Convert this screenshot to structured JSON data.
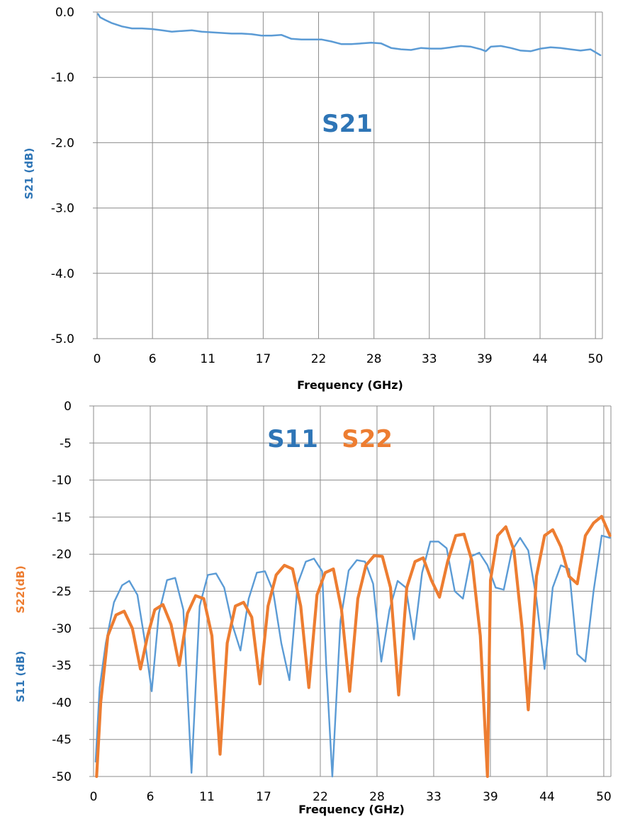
{
  "colors": {
    "s21": "#5b9bd5",
    "s21_label": "#2e75b6",
    "s11": "#5b9bd5",
    "s11_label": "#2e75b6",
    "s22": "#ed7d31"
  },
  "chart_data": [
    {
      "type": "line",
      "title": "",
      "annotation": "S21",
      "xlabel": "Frequency  (GHz)",
      "ylabel": "S21 (dB)",
      "xlim": [
        0,
        50.7
      ],
      "ylim": [
        -5.0,
        0.0
      ],
      "x_tick_labels": [
        "0",
        "6",
        "11",
        "17",
        "22",
        "28",
        "33",
        "39",
        "44",
        "50"
      ],
      "y_tick_labels": [
        "0.0",
        "-1.0",
        "-2.0",
        "-3.0",
        "-4.0",
        "-5.0"
      ],
      "grid": true,
      "series": [
        {
          "name": "S21",
          "x": [
            0.1,
            0.3,
            0.8,
            1.5,
            2.5,
            3.5,
            4.5,
            5.5,
            6.5,
            7.5,
            8.5,
            9.5,
            10.5,
            11.5,
            12.5,
            13.5,
            14.5,
            15.5,
            16.5,
            17.5,
            18.5,
            19.5,
            20.5,
            21.5,
            22.5,
            23.5,
            24.5,
            25.5,
            26.5,
            27.5,
            28.5,
            29.5,
            30.5,
            31.5,
            32.5,
            33.5,
            34.5,
            35.5,
            36.5,
            37.5,
            38.5,
            39.0,
            39.5,
            40.5,
            41.5,
            42.5,
            43.5,
            44.5,
            45.5,
            46.5,
            47.5,
            48.5,
            49.5,
            50.5
          ],
          "y": [
            -0.03,
            -0.08,
            -0.12,
            -0.17,
            -0.22,
            -0.25,
            -0.25,
            -0.26,
            -0.28,
            -0.3,
            -0.29,
            -0.28,
            -0.3,
            -0.31,
            -0.32,
            -0.33,
            -0.33,
            -0.34,
            -0.36,
            -0.36,
            -0.35,
            -0.41,
            -0.42,
            -0.42,
            -0.42,
            -0.45,
            -0.49,
            -0.49,
            -0.48,
            -0.47,
            -0.48,
            -0.55,
            -0.57,
            -0.58,
            -0.55,
            -0.56,
            -0.56,
            -0.54,
            -0.52,
            -0.53,
            -0.57,
            -0.6,
            -0.53,
            -0.52,
            -0.55,
            -0.59,
            -0.6,
            -0.56,
            -0.54,
            -0.55,
            -0.57,
            -0.59,
            -0.57,
            -0.66
          ]
        }
      ]
    },
    {
      "type": "line",
      "title": "",
      "annotations": [
        "S11",
        "S22"
      ],
      "xlabel": "Frequency  (GHz)",
      "ylabel": [
        "S22(dB)",
        "S11 (dB)"
      ],
      "xlim": [
        0,
        50.7
      ],
      "ylim": [
        -50,
        0
      ],
      "x_tick_labels": [
        "0",
        "6",
        "11",
        "17",
        "22",
        "28",
        "33",
        "39",
        "44",
        "50"
      ],
      "y_tick_labels": [
        "0",
        "-5",
        "-10",
        "-15",
        "-20",
        "-25",
        "-30",
        "-35",
        "-40",
        "-45",
        "-50"
      ],
      "grid": true,
      "series": [
        {
          "name": "S11",
          "x": [
            0.2,
            0.6,
            1.2,
            2.0,
            2.8,
            3.5,
            4.3,
            5.0,
            5.7,
            6.4,
            7.2,
            8.0,
            8.8,
            9.6,
            10.4,
            11.2,
            12.0,
            12.8,
            13.6,
            14.4,
            15.2,
            16.0,
            16.8,
            17.6,
            18.4,
            19.2,
            20.0,
            20.8,
            21.6,
            22.4,
            22.8,
            23.4,
            24.2,
            25.0,
            25.8,
            26.6,
            27.4,
            28.2,
            29.0,
            29.8,
            30.6,
            31.4,
            32.2,
            33.0,
            33.8,
            34.6,
            35.4,
            36.2,
            37.0,
            37.8,
            38.6,
            39.4,
            40.2,
            41.0,
            41.8,
            42.6,
            43.4,
            44.2,
            45.0,
            45.8,
            46.6,
            47.4,
            48.2,
            49.0,
            49.8,
            50.6
          ],
          "y": [
            -48,
            -38,
            -32,
            -26.5,
            -24.2,
            -23.6,
            -25.5,
            -31.5,
            -38.5,
            -28,
            -23.5,
            -23.2,
            -27.5,
            -49.5,
            -27,
            -22.8,
            -22.6,
            -24.5,
            -29.5,
            -33,
            -26,
            -22.5,
            -22.3,
            -25,
            -32,
            -37,
            -24,
            -21,
            -20.6,
            -22.3,
            -35,
            -50,
            -29,
            -22.2,
            -20.8,
            -21,
            -24,
            -34.5,
            -27.5,
            -23.6,
            -24.5,
            -31.5,
            -22.5,
            -18.3,
            -18.3,
            -19.2,
            -25,
            -26,
            -20.3,
            -19.8,
            -21.5,
            -24.5,
            -24.8,
            -19.5,
            -17.8,
            -19.5,
            -26,
            -35.5,
            -24.5,
            -21.5,
            -22,
            -33.5,
            -34.5,
            -25,
            -17.5,
            -17.8
          ]
        },
        {
          "name": "S22",
          "x": [
            0.3,
            0.7,
            1.4,
            2.2,
            3.0,
            3.8,
            4.6,
            5.3,
            6.0,
            6.8,
            7.6,
            8.4,
            9.2,
            10.0,
            10.8,
            11.6,
            12.4,
            13.1,
            13.9,
            14.7,
            15.5,
            16.3,
            17.1,
            17.9,
            18.7,
            19.5,
            20.3,
            21.1,
            21.9,
            22.7,
            23.5,
            24.3,
            25.1,
            25.9,
            26.7,
            27.5,
            28.3,
            29.1,
            29.9,
            30.7,
            31.5,
            32.3,
            33.1,
            33.9,
            34.7,
            35.5,
            36.3,
            37.1,
            37.9,
            38.6,
            38.9,
            39.6,
            40.4,
            41.2,
            42.0,
            42.6,
            43.4,
            44.2,
            45.0,
            45.8,
            46.6,
            47.4,
            48.2,
            49.0,
            49.8,
            50.6
          ],
          "y": [
            -50,
            -40,
            -31,
            -28.2,
            -27.7,
            -30,
            -35.5,
            -31,
            -27.5,
            -26.8,
            -29.5,
            -35,
            -28,
            -25.6,
            -26,
            -31,
            -47,
            -32,
            -27,
            -26.5,
            -28.5,
            -37.5,
            -27,
            -22.8,
            -21.5,
            -22,
            -27,
            -38,
            -25.5,
            -22.5,
            -22,
            -27.5,
            -38.5,
            -26,
            -21.5,
            -20.2,
            -20.3,
            -24.5,
            -39,
            -24.5,
            -21,
            -20.5,
            -23.5,
            -25.8,
            -21,
            -17.5,
            -17.3,
            -21,
            -31,
            -50,
            -23.5,
            -17.5,
            -16.3,
            -19.5,
            -30,
            -41,
            -23,
            -17.5,
            -16.7,
            -19,
            -23,
            -24,
            -17.5,
            -15.8,
            -14.9,
            -17.5
          ]
        }
      ]
    }
  ]
}
